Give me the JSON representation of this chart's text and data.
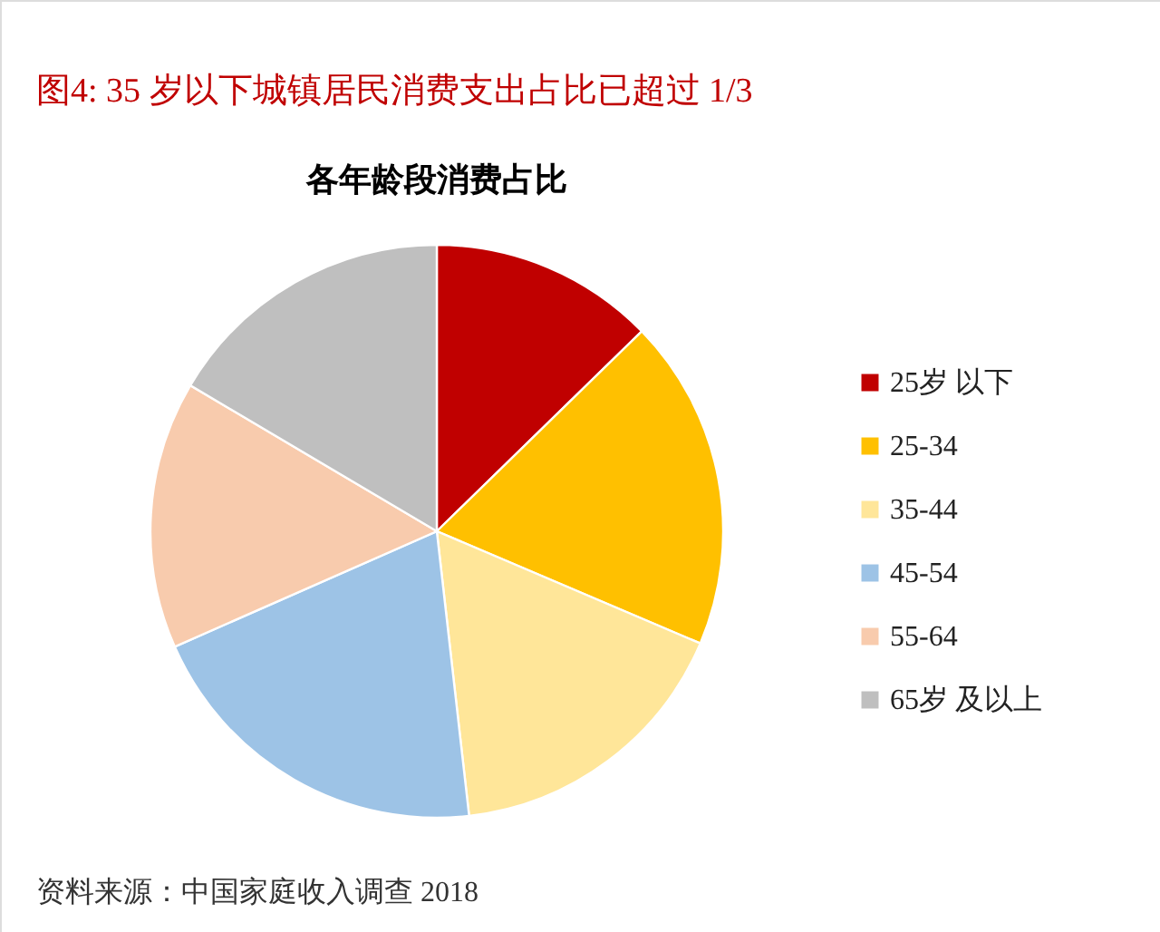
{
  "chart_data": {
    "type": "pie",
    "title": "图4: 35 岁以下城镇居民消费支出占比已超过 1/3",
    "subtitle": "各年龄段消费占比",
    "categories": [
      "25岁 以下",
      "25-34",
      "35-44",
      "45-54",
      "55-64",
      "65岁 及以上"
    ],
    "values": [
      12.7,
      18.7,
      16.8,
      20.2,
      15.1,
      16.5
    ],
    "colors": [
      "#c00000",
      "#ffc000",
      "#ffe699",
      "#9dc3e6",
      "#f8cbad",
      "#bfbfbf"
    ],
    "legend": "right",
    "annotations": [
      "资料来源：中国家庭收入调查 2018"
    ]
  }
}
